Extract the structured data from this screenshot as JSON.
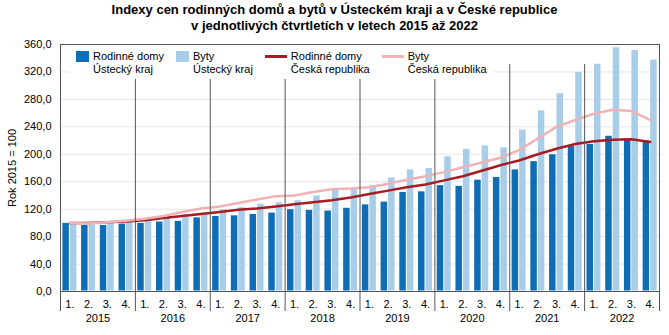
{
  "chart_data": {
    "type": "bar",
    "title": "Indexy cen rodinných domů a bytů v Ústeckém kraji a v České republice\nv jednotlivých čtvrtletích v letech 2015 až 2022",
    "y_label": "Rok 2015 = 100",
    "categories": [
      "1.",
      "2.",
      "3.",
      "4.",
      "1.",
      "2.",
      "3.",
      "4.",
      "1.",
      "2.",
      "3.",
      "4.",
      "1.",
      "2.",
      "3.",
      "4.",
      "1.",
      "2.",
      "3.",
      "4.",
      "1.",
      "2.",
      "3.",
      "4.",
      "1.",
      "2.",
      "3.",
      "4.",
      "1.",
      "2.",
      "3.",
      "4."
    ],
    "years": [
      "2015",
      "2016",
      "2017",
      "2018",
      "2019",
      "2020",
      "2021",
      "2022"
    ],
    "series": [
      {
        "name": "Rodinné domy\nÚstecký kraj",
        "type": "bar",
        "color": "#0f6db5",
        "values": [
          100,
          97,
          97,
          99,
          100,
          102,
          103,
          108,
          110,
          111,
          113,
          115,
          120,
          119,
          118,
          122,
          127,
          131,
          145,
          146,
          155,
          154,
          163,
          167,
          178,
          190,
          200,
          212,
          215,
          227,
          223,
          220
        ]
      },
      {
        "name": "Byty\nÚstecký kraj",
        "type": "bar",
        "color": "#a8cde9",
        "values": [
          100,
          98,
          100,
          102,
          104,
          109,
          113,
          115,
          120,
          123,
          128,
          130,
          133,
          140,
          150,
          152,
          155,
          166,
          178,
          180,
          197,
          208,
          213,
          210,
          236,
          264,
          289,
          320,
          332,
          356,
          352,
          338
        ]
      },
      {
        "name": "Rodinné domy\nČeská republika",
        "type": "line",
        "color": "#a61c22",
        "values": [
          100,
          100,
          101,
          102,
          104,
          107,
          110,
          113,
          116,
          119,
          121,
          124,
          127,
          130,
          133,
          137,
          142,
          147,
          152,
          156,
          162,
          168,
          176,
          184,
          191,
          200,
          208,
          215,
          219,
          221,
          222,
          218
        ]
      },
      {
        "name": "Byty\nČeská republika",
        "type": "line",
        "color": "#f0b2b6",
        "values": [
          100,
          99,
          101,
          103,
          106,
          110,
          116,
          121,
          124,
          129,
          134,
          139,
          140,
          145,
          149,
          150,
          152,
          157,
          163,
          168,
          174,
          181,
          188,
          195,
          206,
          223,
          240,
          250,
          259,
          265,
          263,
          250
        ]
      }
    ],
    "ylim": [
      0,
      360
    ],
    "yticks": [
      {
        "value": 0,
        "label": "0,0"
      },
      {
        "value": 40,
        "label": "40,0"
      },
      {
        "value": 80,
        "label": "80,0"
      },
      {
        "value": 120,
        "label": "120,0"
      },
      {
        "value": 160,
        "label": "160,0"
      },
      {
        "value": 200,
        "label": "200,0"
      },
      {
        "value": 240,
        "label": "240,0"
      },
      {
        "value": 280,
        "label": "280,0"
      },
      {
        "value": 320,
        "label": "320,0"
      },
      {
        "value": 360,
        "label": "360,0"
      }
    ],
    "grid": true,
    "legend": "top-left"
  }
}
